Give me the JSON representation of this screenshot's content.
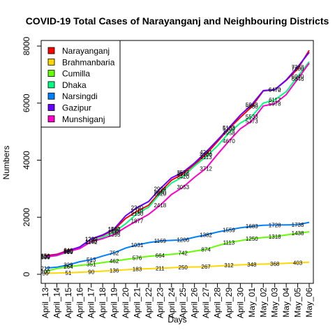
{
  "chart_data": {
    "type": "line",
    "title": "COVID-19 Total Cases of Narayanganj and Neighbouring Districts",
    "xlabel": "Days",
    "ylabel": "Numbers",
    "ylim": [
      0,
      8000
    ],
    "yticks": [
      0,
      2000,
      4000,
      6000,
      8000
    ],
    "legend_position": "top-left",
    "x": [
      "April_13",
      "April_14",
      "April_15",
      "April_16",
      "April_17",
      "April_18",
      "April_19",
      "April_20",
      "April_21",
      "April_22",
      "April_23",
      "April_24",
      "April_25",
      "April_26",
      "April_27",
      "April_28",
      "April_29",
      "April_30",
      "May_01",
      "May_02",
      "May_03",
      "May_04",
      "May_05",
      "May_06"
    ],
    "series": [
      {
        "name": "Narayanganj",
        "color": "#ff0000",
        "values": [
          650,
          700,
          840,
          950,
          1230,
          1360,
          1560,
          1960,
          2210,
          2420,
          2880,
          3300,
          3520,
          3850,
          4200,
          4650,
          5100,
          5500,
          5880,
          6430,
          6470,
          6800,
          7200,
          7850
        ],
        "labels": [
          {
            "i": 0,
            "text": "650"
          },
          {
            "i": 2,
            "text": "840"
          },
          {
            "i": 4,
            "text": "1230"
          },
          {
            "i": 6,
            "text": "1560"
          },
          {
            "i": 8,
            "text": "2210"
          },
          {
            "i": 10,
            "text": "2880"
          },
          {
            "i": 12,
            "text": "3520"
          },
          {
            "i": 14,
            "text": "4200"
          },
          {
            "i": 16,
            "text": "5100"
          },
          {
            "i": 18,
            "text": "5880"
          },
          {
            "i": 20,
            "text": "6470"
          },
          {
            "i": 22,
            "text": "7200"
          }
        ]
      },
      {
        "name": "Brahmanbaria",
        "color": "#ffd700",
        "values": [
          36,
          45,
          51,
          70,
          90,
          110,
          136,
          160,
          183,
          195,
          211,
          230,
          250,
          258,
          267,
          290,
          312,
          330,
          348,
          358,
          368,
          385,
          403,
          420
        ],
        "labels": [
          {
            "i": 0,
            "text": "36"
          },
          {
            "i": 2,
            "text": "51"
          },
          {
            "i": 4,
            "text": "90"
          },
          {
            "i": 6,
            "text": "136"
          },
          {
            "i": 8,
            "text": "183"
          },
          {
            "i": 10,
            "text": "211"
          },
          {
            "i": 12,
            "text": "250"
          },
          {
            "i": 14,
            "text": "267"
          },
          {
            "i": 16,
            "text": "312"
          },
          {
            "i": 18,
            "text": "348"
          },
          {
            "i": 20,
            "text": "368"
          },
          {
            "i": 22,
            "text": "403"
          }
        ]
      },
      {
        "name": "Cumilla",
        "color": "#66ff00",
        "values": [
          100,
          200,
          264,
          310,
          351,
          410,
          462,
          520,
          576,
          630,
          664,
          700,
          742,
          810,
          874,
          1000,
          1113,
          1180,
          1250,
          1290,
          1318,
          1380,
          1438,
          1490
        ],
        "labels": [
          {
            "i": 0,
            "text": "100"
          },
          {
            "i": 2,
            "text": "264"
          },
          {
            "i": 4,
            "text": "351"
          },
          {
            "i": 6,
            "text": "462"
          },
          {
            "i": 8,
            "text": "576"
          },
          {
            "i": 10,
            "text": "664"
          },
          {
            "i": 12,
            "text": "742"
          },
          {
            "i": 14,
            "text": "874"
          },
          {
            "i": 16,
            "text": "1113"
          },
          {
            "i": 18,
            "text": "1250"
          },
          {
            "i": 20,
            "text": "1318"
          },
          {
            "i": 22,
            "text": "1438"
          }
        ]
      },
      {
        "name": "Dhaka",
        "color": "#00ff80",
        "values": [
          600,
          650,
          780,
          920,
          1150,
          1300,
          1480,
          1770,
          2130,
          2350,
          2820,
          3200,
          3420,
          3800,
          4113,
          4500,
          4958,
          5300,
          5533,
          6000,
          6117,
          6400,
          6940,
          7450
        ],
        "labels": [
          {
            "i": 0,
            "text": "600"
          },
          {
            "i": 2,
            "text": "780"
          },
          {
            "i": 4,
            "text": "1150"
          },
          {
            "i": 6,
            "text": "1480"
          },
          {
            "i": 8,
            "text": "2130"
          },
          {
            "i": 10,
            "text": "2820"
          },
          {
            "i": 12,
            "text": "3420"
          },
          {
            "i": 14,
            "text": "4113"
          },
          {
            "i": 16,
            "text": "4958"
          },
          {
            "i": 18,
            "text": "5533"
          },
          {
            "i": 20,
            "text": "6117"
          },
          {
            "i": 22,
            "text": "6940"
          }
        ]
      },
      {
        "name": "Narsingdi",
        "color": "#0080ff",
        "values": [
          212,
          250,
          329,
          440,
          513,
          640,
          752,
          920,
          1031,
          1110,
          1169,
          1190,
          1206,
          1300,
          1382,
          1480,
          1559,
          1630,
          1683,
          1720,
          1728,
          1732,
          1738,
          1820
        ],
        "labels": [
          {
            "i": 0,
            "text": "212"
          },
          {
            "i": 2,
            "text": "329"
          },
          {
            "i": 4,
            "text": "513"
          },
          {
            "i": 6,
            "text": "752"
          },
          {
            "i": 8,
            "text": "1031"
          },
          {
            "i": 10,
            "text": "1169"
          },
          {
            "i": 12,
            "text": "1206"
          },
          {
            "i": 14,
            "text": "1382"
          },
          {
            "i": 16,
            "text": "1559"
          },
          {
            "i": 18,
            "text": "1683"
          },
          {
            "i": 20,
            "text": "1728"
          },
          {
            "i": 22,
            "text": "1738"
          }
        ]
      },
      {
        "name": "Gazipur",
        "color": "#6600ff",
        "values": [
          630,
          680,
          820,
          960,
          1239,
          1380,
          1592,
          2050,
          2340,
          2550,
          2994,
          3380,
          3577,
          3900,
          4281,
          4700,
          5133,
          5580,
          5948,
          6440,
          6472,
          6810,
          7268,
          7780
        ],
        "labels": [
          {
            "i": 0,
            "text": "630"
          },
          {
            "i": 2,
            "text": "820"
          },
          {
            "i": 4,
            "text": "1239"
          },
          {
            "i": 6,
            "text": "1592"
          },
          {
            "i": 8,
            "text": "2340"
          },
          {
            "i": 10,
            "text": "2994"
          },
          {
            "i": 12,
            "text": "3577"
          },
          {
            "i": 14,
            "text": "4281"
          },
          {
            "i": 16,
            "text": "5133"
          },
          {
            "i": 18,
            "text": "5948"
          },
          {
            "i": 20,
            "text": "6472"
          },
          {
            "i": 22,
            "text": "7268"
          }
        ]
      },
      {
        "name": "Munshiganj",
        "color": "#ff00cc",
        "values": [
          610,
          660,
          800,
          900,
          1142,
          1250,
          1395,
          1650,
          1877,
          2100,
          2418,
          2800,
          3053,
          3400,
          3712,
          4200,
          4670,
          5100,
          5373,
          5900,
          5978,
          6300,
          6846,
          7400
        ],
        "labels": [
          {
            "i": 0,
            "text": "610"
          },
          {
            "i": 2,
            "text": "800"
          },
          {
            "i": 4,
            "text": "1142"
          },
          {
            "i": 6,
            "text": "1395"
          },
          {
            "i": 8,
            "text": "1877"
          },
          {
            "i": 10,
            "text": "2418"
          },
          {
            "i": 12,
            "text": "3053"
          },
          {
            "i": 14,
            "text": "3712"
          },
          {
            "i": 16,
            "text": "4670"
          },
          {
            "i": 18,
            "text": "5373"
          },
          {
            "i": 20,
            "text": "5978"
          },
          {
            "i": 22,
            "text": "6846"
          }
        ]
      }
    ]
  }
}
